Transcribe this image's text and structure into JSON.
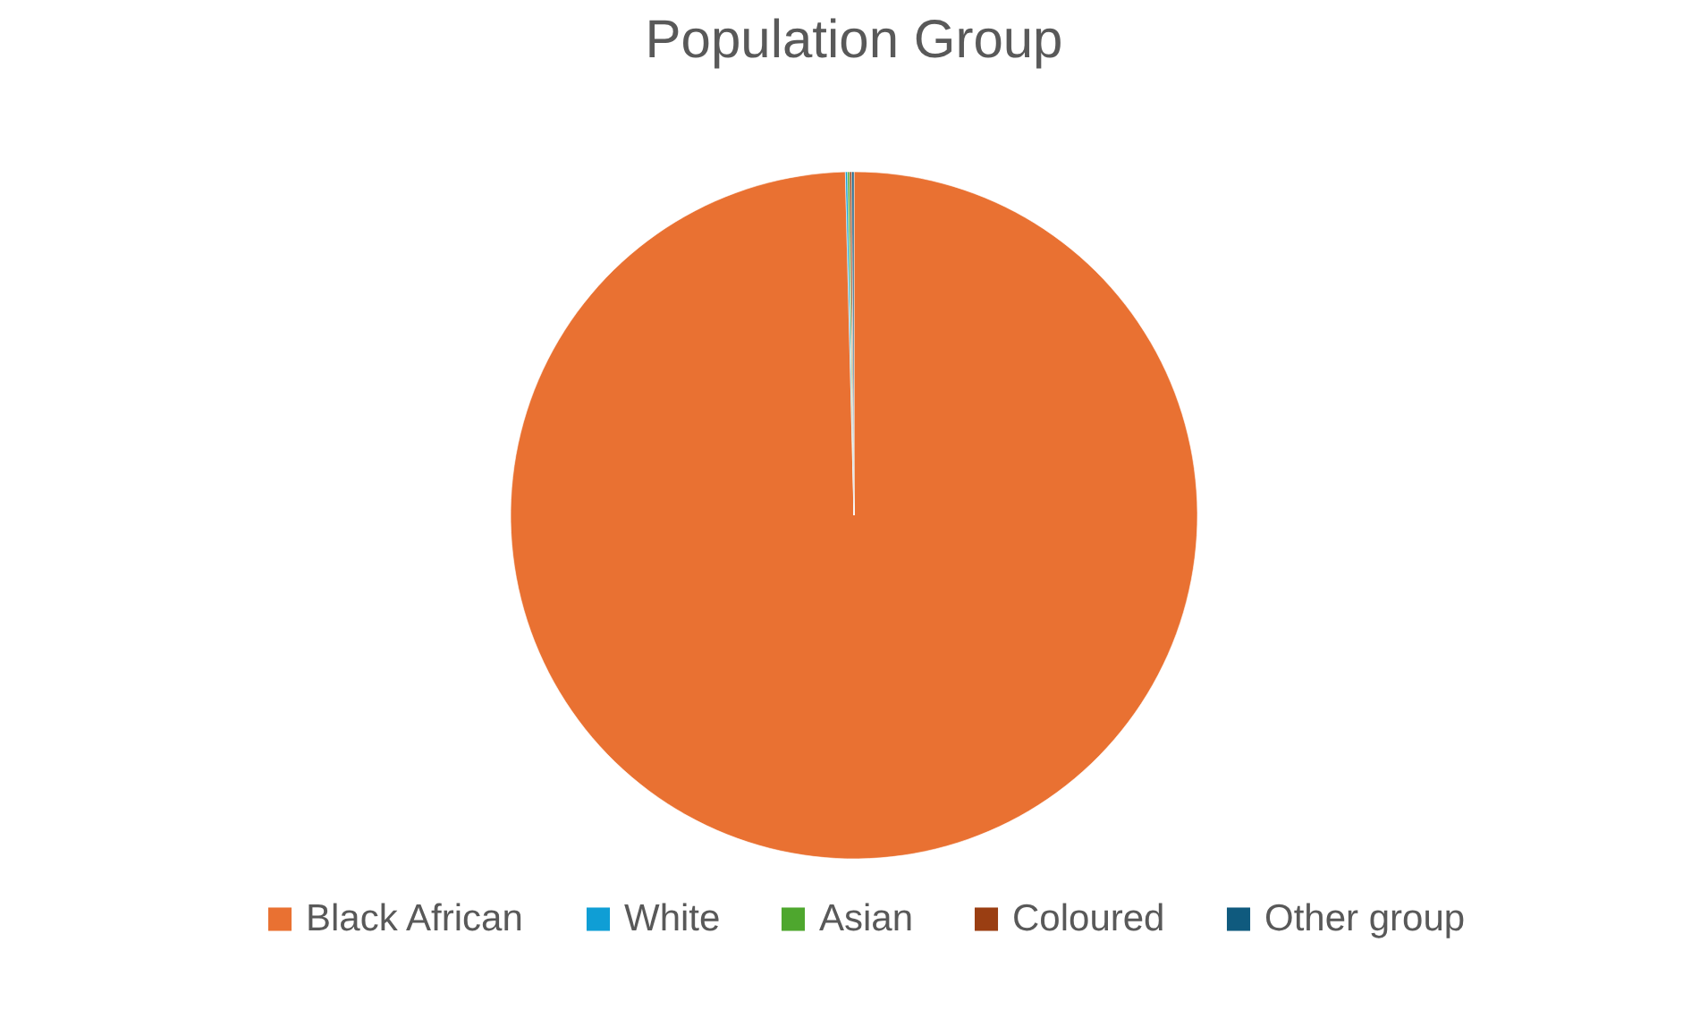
{
  "chart_data": {
    "type": "pie",
    "title": "Population Group",
    "categories": [
      "Black African",
      "White",
      "Asian",
      "Coloured",
      "Other group"
    ],
    "values": [
      99.6,
      0.1,
      0.1,
      0.1,
      0.1
    ],
    "colors": [
      "#e97132",
      "#0f9ed5",
      "#4ea72e",
      "#9a3e12",
      "#0f5a7e"
    ],
    "legend": "bottom"
  }
}
